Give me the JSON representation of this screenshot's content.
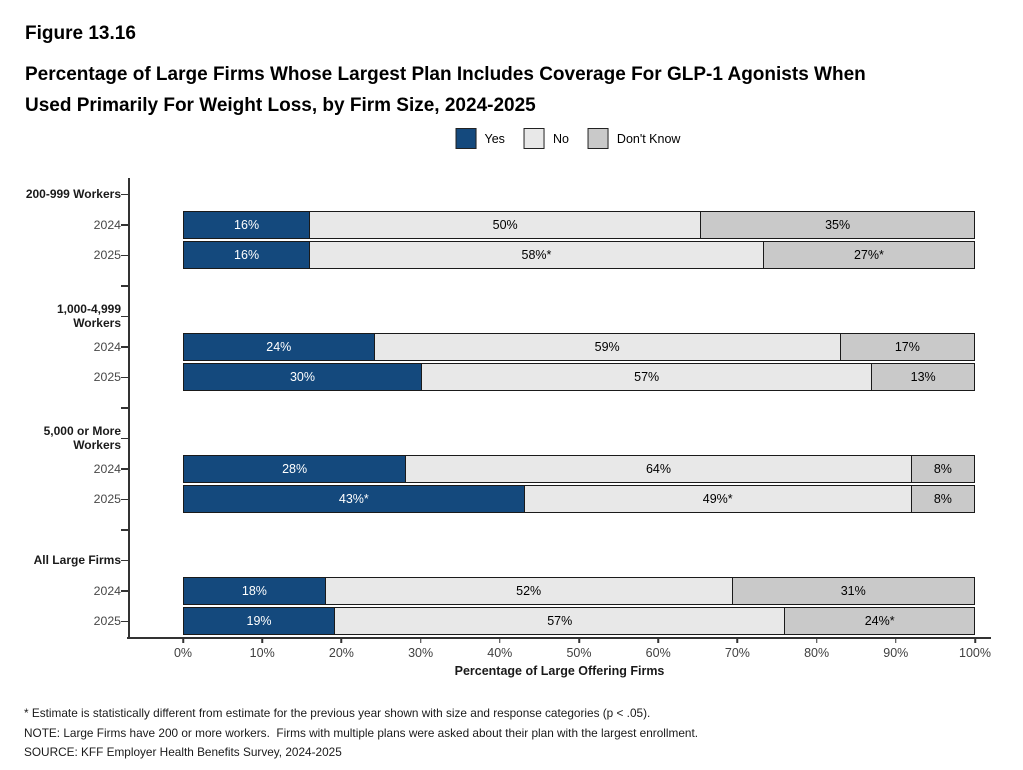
{
  "header": {
    "figure_label": "Figure 13.16",
    "title_line1": "Percentage of Large Firms Whose Largest Plan Includes Coverage For GLP-1 Agonists When",
    "title_line2": "Used Primarily For Weight Loss, by Firm Size, 2024-2025"
  },
  "colors": {
    "yes_blue": "#14497D",
    "no_light_gray": "#E8E8E8",
    "dont_know_gray": "#C9C9C9",
    "bar_border": "#1A1A1A",
    "axis": "#333333"
  },
  "chart_data": {
    "type": "bar",
    "variant": "horizontal-stacked",
    "title": "Percentage of Large Firms Whose Largest Plan Includes Coverage For GLP-1 Agonists When Used Primarily For Weight Loss, by Firm Size, 2024-2025",
    "xlabel": "Percentage of Large Offering Firms",
    "xlim": [
      0,
      100
    ],
    "x_ticks": [
      "0%",
      "10%",
      "20%",
      "30%",
      "40%",
      "50%",
      "60%",
      "70%",
      "80%",
      "90%",
      "100%"
    ],
    "grid": false,
    "legend_position": "top-center",
    "series": [
      {
        "name": "Yes",
        "color": "#14497D",
        "text_color": "#ffffff"
      },
      {
        "name": "No",
        "color": "#E8E8E8",
        "text_color": "#000000"
      },
      {
        "name": "Don't Know",
        "color": "#C9C9C9",
        "text_color": "#000000"
      }
    ],
    "groups": [
      {
        "label": "200-999 Workers",
        "rows": [
          {
            "year": "2024",
            "values": [
              16,
              50,
              35
            ],
            "labels": [
              "16%",
              "50%",
              "35%"
            ]
          },
          {
            "year": "2025",
            "values": [
              16,
              58,
              27
            ],
            "labels": [
              "16%",
              "58%*",
              "27%*"
            ]
          }
        ]
      },
      {
        "label": "1,000-4,999\nWorkers",
        "rows": [
          {
            "year": "2024",
            "values": [
              24,
              59,
              17
            ],
            "labels": [
              "24%",
              "59%",
              "17%"
            ]
          },
          {
            "year": "2025",
            "values": [
              30,
              57,
              13
            ],
            "labels": [
              "30%",
              "57%",
              "13%"
            ]
          }
        ]
      },
      {
        "label": "5,000 or More\nWorkers",
        "rows": [
          {
            "year": "2024",
            "values": [
              28,
              64,
              8
            ],
            "labels": [
              "28%",
              "64%",
              "8%"
            ]
          },
          {
            "year": "2025",
            "values": [
              43,
              49,
              8
            ],
            "labels": [
              "43%*",
              "49%*",
              "8%"
            ]
          }
        ]
      },
      {
        "label": "All Large Firms",
        "rows": [
          {
            "year": "2024",
            "values": [
              18,
              52,
              31
            ],
            "labels": [
              "18%",
              "52%",
              "31%"
            ]
          },
          {
            "year": "2025",
            "values": [
              19,
              57,
              24
            ],
            "labels": [
              "19%",
              "57%",
              "24%*"
            ]
          }
        ]
      }
    ]
  },
  "footnotes": {
    "lines": [
      "* Estimate is statistically different from estimate for the previous year shown with size and response categories (p < .05).",
      "NOTE: Large Firms have 200 or more workers.  Firms with multiple plans were asked about their plan with the largest enrollment.",
      "SOURCE: KFF Employer Health Benefits Survey, 2024-2025"
    ]
  }
}
